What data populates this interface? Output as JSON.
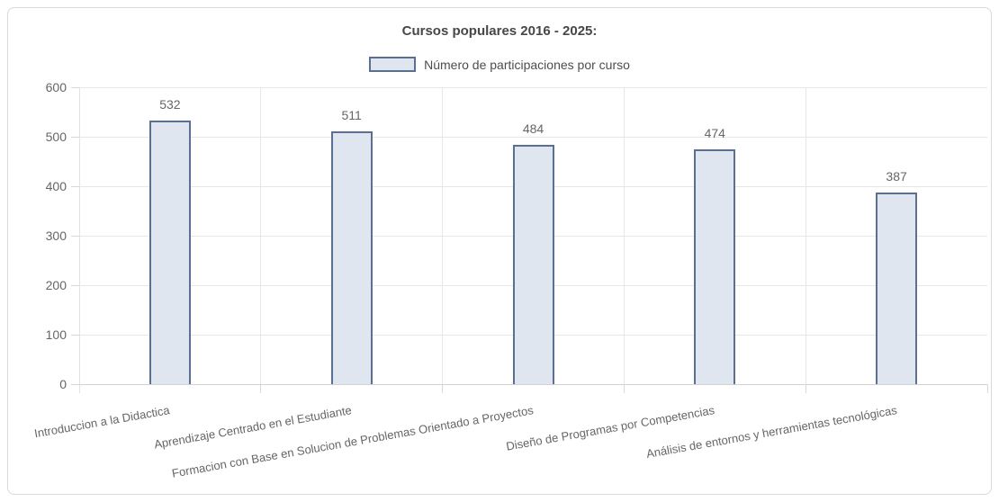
{
  "chart_data": {
    "type": "bar",
    "title": "Cursos populares 2016 - 2025:",
    "series": [
      {
        "name": "Número de participaciones por curso",
        "values": [
          532,
          511,
          484,
          474,
          387
        ]
      }
    ],
    "categories": [
      "Introduccion a la Didactica",
      "Aprendizaje Centrado en el Estudiante",
      "Formacion con Base en Solucion de Problemas Orientado a Proyectos",
      "Diseño de Programas por Competencias",
      "Análisis de entornos y herramientas tecnológicas"
    ],
    "data_labels": [
      532,
      511,
      484,
      474,
      387
    ],
    "ylim": [
      0,
      600
    ],
    "ytick_step": 100,
    "ytick_labels": [
      "0",
      "100",
      "200",
      "300",
      "400",
      "500",
      "600"
    ],
    "grid": true,
    "legend_position": "top-center",
    "xlabel": "",
    "ylabel": "",
    "colors": {
      "bar_fill": "#dfe6ef",
      "bar_border": "#5b7090",
      "gridline": "#e7e7e7",
      "axis_text": "#666666",
      "title_text": "#474747"
    }
  }
}
